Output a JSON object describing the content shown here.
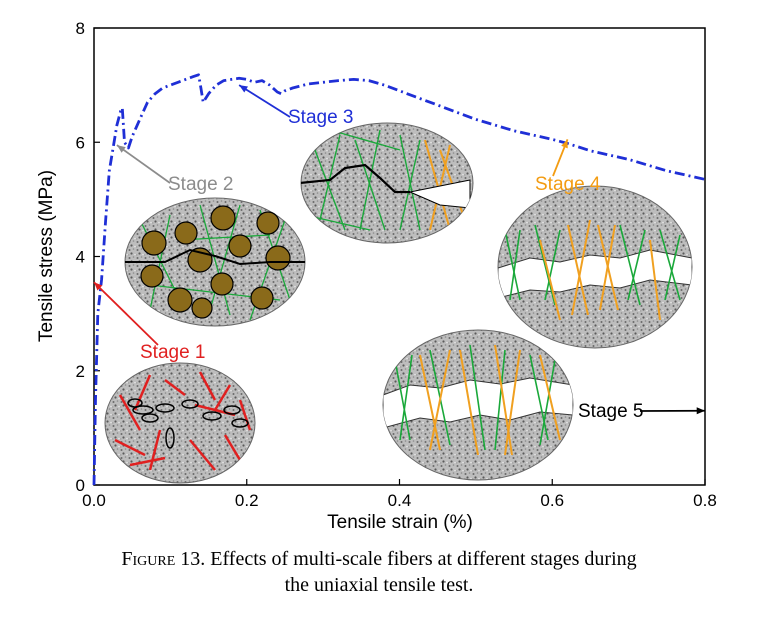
{
  "chart_data": {
    "type": "line",
    "xlabel": "Tensile strain (%)",
    "ylabel": "Tensile stress (MPa)",
    "xlim": [
      0,
      0.8
    ],
    "ylim": [
      0,
      8
    ],
    "xticks": [
      "0.0",
      "0.2",
      "0.4",
      "0.6",
      "0.8"
    ],
    "yticks": [
      "0",
      "2",
      "4",
      "6",
      "8"
    ],
    "grid": false,
    "series": [
      {
        "color": "#1f2fd6",
        "style": "dash-dot",
        "x": [
          0.0,
          0.002,
          0.005,
          0.01,
          0.015,
          0.02,
          0.025,
          0.03,
          0.035,
          0.037,
          0.04,
          0.045,
          0.05,
          0.06,
          0.07,
          0.08,
          0.09,
          0.1,
          0.11,
          0.12,
          0.13,
          0.137,
          0.14,
          0.143,
          0.15,
          0.16,
          0.17,
          0.18,
          0.19,
          0.2,
          0.21,
          0.22,
          0.23,
          0.24,
          0.245,
          0.25,
          0.26,
          0.28,
          0.3,
          0.32,
          0.34,
          0.36,
          0.38,
          0.4,
          0.42,
          0.45,
          0.48,
          0.5,
          0.55,
          0.6,
          0.62,
          0.65,
          0.7,
          0.75,
          0.8
        ],
        "y": [
          0.0,
          1.5,
          3.0,
          3.6,
          4.6,
          5.5,
          5.9,
          6.3,
          6.55,
          6.6,
          6.0,
          5.9,
          6.1,
          6.4,
          6.7,
          6.85,
          6.95,
          7.0,
          7.05,
          7.1,
          7.15,
          7.18,
          6.95,
          6.7,
          6.85,
          7.0,
          7.08,
          7.1,
          7.12,
          7.1,
          7.05,
          7.08,
          7.0,
          6.88,
          6.85,
          6.9,
          6.95,
          7.02,
          7.05,
          7.08,
          7.1,
          7.08,
          7.0,
          6.9,
          6.8,
          6.65,
          6.5,
          6.4,
          6.2,
          6.05,
          5.98,
          5.85,
          5.7,
          5.5,
          5.35
        ]
      }
    ],
    "annotations": [
      {
        "text": "Stage 1",
        "color": "#e02020",
        "x": 0.0,
        "y": 3.55
      },
      {
        "text": "Stage 2",
        "color": "#8c8c8c",
        "x": 0.03,
        "y": 5.95
      },
      {
        "text": "Stage 3",
        "color": "#1f2fd6",
        "x": 0.19,
        "y": 7.0
      },
      {
        "text": "Stage 4",
        "color": "#f39c12",
        "x": 0.62,
        "y": 6.05
      },
      {
        "text": "Stage 5",
        "color": "#000000",
        "x": 0.8,
        "y": 1.3
      }
    ]
  },
  "caption": {
    "figure_no": "Figure 13.",
    "line1": "Effects of multi-scale fibers at different stages during",
    "line2": "the uniaxial tensile test."
  },
  "colors": {
    "matrix": "#b9b9b9",
    "steel_fiber": "#e02020",
    "green_fiber": "#1aa83a",
    "orange_fiber": "#f0a020",
    "aggregate": "#8a6a1a"
  }
}
